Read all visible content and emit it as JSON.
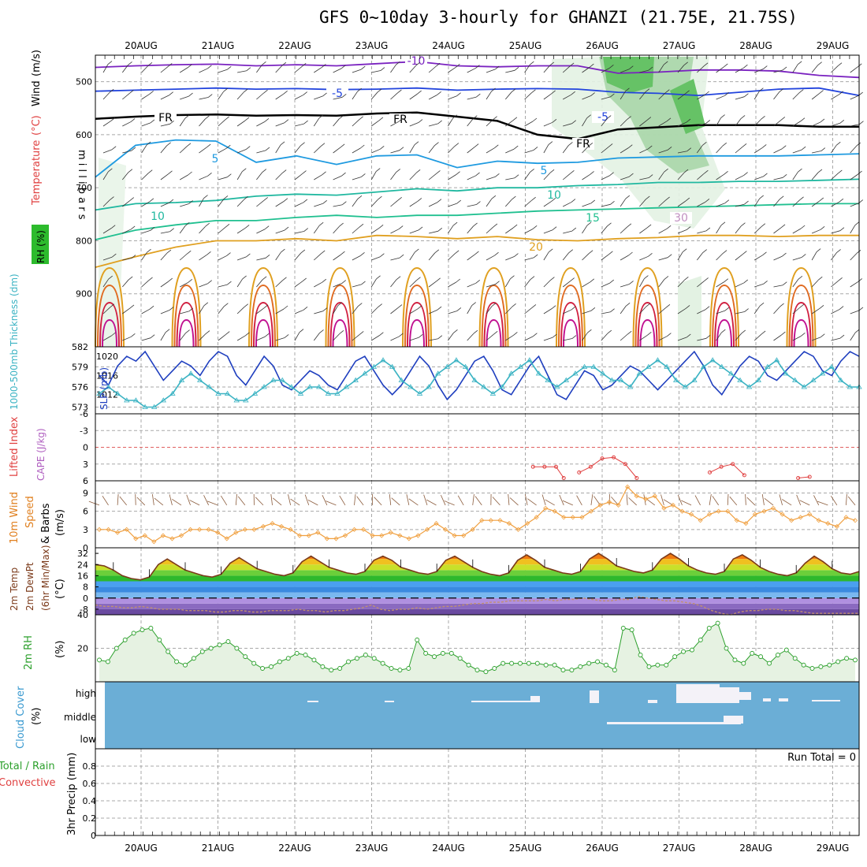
{
  "title": "GFS 0~10day 3-hourly for GHANZI (21.75E, 21.75S)",
  "colors": {
    "grid": "#a8a8a8",
    "cloud_blue": "#6baed6",
    "rh_green": "#2ca02c",
    "slp_blue": "#1f3fbf",
    "thick_cyan": "#3bb3c3",
    "wind_orange": "#f0a040",
    "temp_brown": "#7b3a1a",
    "dew_purple": "#8a5a9a",
    "precip_red": "#e04040"
  },
  "chart_data": [
    {
      "type": "heatmap",
      "name": "upper-air",
      "dates": [
        "20AUG",
        "21AUG",
        "22AUG",
        "23AUG",
        "24AUG",
        "25AUG",
        "26AUG",
        "27AUG",
        "28AUG",
        "29AUG"
      ],
      "y_axis_label": "m i l l i b a r s",
      "y_ticks": [
        500,
        600,
        700,
        800,
        900
      ],
      "ylim": [
        1000,
        450
      ],
      "legend_labels": [
        "RH (%)",
        "Temperature",
        "(°C)",
        "Wind",
        "(m/s)"
      ],
      "contour_labels": [
        "-10",
        "-5",
        "-5",
        "FR",
        "FR",
        "FR",
        "5",
        "5",
        "10",
        "10",
        "15",
        "20",
        "30"
      ],
      "isotherms": [
        {
          "label": "-10",
          "color": "#7a22c0",
          "p": [
            473,
            470,
            468,
            467,
            470,
            468,
            470,
            466,
            462,
            470,
            472,
            470,
            470,
            484,
            482,
            478,
            478,
            480,
            488,
            492
          ]
        },
        {
          "label": "-5",
          "color": "#2244dd",
          "p": [
            518,
            516,
            514,
            512,
            514,
            513,
            515,
            514,
            512,
            516,
            514,
            513,
            514,
            520,
            522,
            526,
            520,
            514,
            512,
            526
          ]
        },
        {
          "label": "FR",
          "color": "#000000",
          "p": [
            570,
            566,
            563,
            562,
            564,
            563,
            564,
            560,
            558,
            566,
            574,
            600,
            608,
            590,
            586,
            582,
            582,
            582,
            585,
            585
          ]
        },
        {
          "label": "5",
          "color": "#1e9ae0",
          "p": [
            680,
            620,
            610,
            612,
            652,
            640,
            656,
            640,
            638,
            662,
            650,
            654,
            652,
            644,
            642,
            640,
            640,
            640,
            638,
            636
          ]
        },
        {
          "label": "10",
          "color": "#20b8a0",
          "p": [
            742,
            730,
            728,
            724,
            716,
            712,
            714,
            708,
            702,
            706,
            700,
            700,
            696,
            694,
            690,
            690,
            688,
            688,
            686,
            684
          ]
        },
        {
          "label": "15",
          "color": "#20c090",
          "p": [
            798,
            780,
            770,
            762,
            762,
            756,
            752,
            756,
            752,
            752,
            748,
            744,
            742,
            740,
            738,
            736,
            734,
            732,
            730,
            730
          ]
        },
        {
          "label": "20",
          "color": "#e0a020",
          "p": [
            850,
            830,
            812,
            800,
            800,
            796,
            800,
            790,
            792,
            796,
            792,
            798,
            800,
            796,
            794,
            790,
            790,
            792,
            790,
            790
          ]
        }
      ],
      "rh_contour_labels": [
        "30"
      ]
    },
    {
      "type": "line",
      "name": "slp-thickness",
      "left_axis_label": "1000-500mb Thickness (dm)",
      "left_ticks": [
        573,
        576,
        579,
        582
      ],
      "left_ylim": [
        572,
        582
      ],
      "right_axis_label": "SLP (mb)",
      "right_ticks": [
        1012,
        1016,
        1020
      ],
      "right_ylim": [
        1008,
        1022
      ],
      "series": [
        {
          "name": "SLP",
          "axis": "right",
          "values": [
            1016,
            1014,
            1018,
            1020,
            1019,
            1021,
            1018,
            1015,
            1017,
            1019,
            1018,
            1016,
            1019,
            1021,
            1020,
            1016,
            1014,
            1017,
            1020,
            1018,
            1014,
            1013,
            1015,
            1017,
            1016,
            1014,
            1013,
            1016,
            1019,
            1020,
            1017,
            1014,
            1012,
            1014,
            1017,
            1020,
            1018,
            1014,
            1011,
            1013,
            1016,
            1019,
            1020,
            1017,
            1013,
            1012,
            1015,
            1018,
            1020,
            1016,
            1012,
            1011,
            1014,
            1017,
            1016,
            1013,
            1014,
            1016,
            1018,
            1017,
            1015,
            1013,
            1015,
            1017,
            1019,
            1021,
            1018,
            1014,
            1012,
            1015,
            1018,
            1020,
            1019,
            1016,
            1015,
            1017,
            1019,
            1021,
            1020,
            1017,
            1016,
            1019,
            1021,
            1020
          ]
        },
        {
          "name": "Thickness",
          "axis": "left",
          "values": [
            575,
            576,
            575,
            574,
            574,
            573,
            573,
            574,
            575,
            577,
            578,
            577,
            576,
            575,
            575,
            574,
            574,
            575,
            576,
            577,
            577,
            576,
            575,
            576,
            576,
            575,
            575,
            576,
            577,
            578,
            579,
            580,
            579,
            577,
            576,
            575,
            576,
            578,
            579,
            580,
            579,
            577,
            576,
            575,
            576,
            578,
            579,
            580,
            578,
            577,
            576,
            577,
            578,
            579,
            579,
            578,
            577,
            577,
            576,
            578,
            579,
            580,
            579,
            577,
            576,
            577,
            579,
            580,
            579,
            578,
            577,
            576,
            577,
            579,
            580,
            578,
            577,
            576,
            577,
            578,
            579,
            577,
            576,
            576
          ]
        }
      ]
    },
    {
      "type": "line",
      "name": "lifted-index-cape",
      "left_axis_label": "Lifted Index",
      "right_axis_label": "CAPE (J/kg)",
      "y_ticks": [
        -6,
        -3,
        0,
        3,
        6
      ],
      "ylim": [
        6,
        -6
      ],
      "series": [
        {
          "name": "Lifted Index (segments)",
          "segments": [
            [
              [
                5.6,
                3.5
              ],
              [
                5.75,
                3.5
              ],
              [
                5.9,
                3.5
              ],
              [
                6.0,
                5.5
              ]
            ],
            [
              [
                6.2,
                4.5
              ],
              [
                6.35,
                3.5
              ],
              [
                6.5,
                2.0
              ],
              [
                6.65,
                1.8
              ],
              [
                6.8,
                3.0
              ],
              [
                6.95,
                5.5
              ]
            ],
            [
              [
                7.9,
                4.5
              ],
              [
                8.05,
                3.5
              ],
              [
                8.2,
                3.0
              ],
              [
                8.35,
                5.0
              ]
            ],
            [
              [
                9.05,
                5.5
              ],
              [
                9.2,
                5.3
              ]
            ]
          ]
        }
      ]
    },
    {
      "type": "line",
      "name": "wind-10m",
      "axis_label_1": "10m Wind",
      "axis_label_2": "Speed",
      "axis_label_3": "& Barbs",
      "right_label": "(m/s)",
      "y_ticks": [
        0,
        3,
        6,
        9
      ],
      "ylim": [
        0,
        11
      ],
      "series": [
        {
          "name": "10m Wind Speed",
          "values": [
            3,
            3,
            2.5,
            3,
            1.5,
            2,
            1,
            2,
            1.5,
            2,
            3,
            3,
            3,
            2.5,
            1.5,
            2.5,
            3,
            3,
            3.5,
            4,
            3.5,
            3,
            2,
            2,
            2.5,
            1.5,
            1.5,
            2,
            3,
            3,
            2,
            2,
            2.5,
            2,
            1.5,
            2,
            3,
            4,
            3,
            2,
            2,
            3,
            4.5,
            4.5,
            4.5,
            4,
            3,
            4,
            5,
            6.5,
            6,
            5,
            5,
            5,
            6,
            7,
            7.5,
            7,
            10,
            8.5,
            8,
            8.5,
            6.5,
            7,
            6,
            5.5,
            4.5,
            5.5,
            6,
            6,
            4.5,
            4,
            5.5,
            6,
            6.5,
            5.5,
            4.5,
            5,
            5.5,
            4.5,
            4,
            3.5,
            5,
            4.5
          ]
        }
      ]
    },
    {
      "type": "area",
      "name": "temp-2m",
      "axis_labels": [
        "2m Temp",
        "2m DewPt",
        "(6hr Min/Max)"
      ],
      "right_label": "(°C)",
      "y_ticks": [
        -8,
        0,
        8,
        16,
        24,
        32
      ],
      "ylim": [
        -12,
        36
      ],
      "series": [
        {
          "name": "2m Temp",
          "values": [
            24,
            23,
            20,
            16,
            14,
            13,
            15,
            24,
            28,
            24,
            20,
            18,
            16,
            15,
            17,
            25,
            29,
            25,
            21,
            19,
            17,
            16,
            18,
            26,
            30,
            26,
            22,
            20,
            18,
            17,
            19,
            27,
            30,
            27,
            22,
            20,
            18,
            17,
            19,
            27,
            30,
            26,
            22,
            19,
            17,
            16,
            18,
            27,
            31,
            27,
            22,
            20,
            18,
            17,
            19,
            28,
            32,
            28,
            23,
            21,
            19,
            18,
            20,
            28,
            32,
            28,
            23,
            20,
            18,
            17,
            19,
            28,
            31,
            27,
            22,
            19,
            17,
            16,
            18,
            25,
            30,
            26,
            21,
            18,
            17,
            19
          ]
        },
        {
          "name": "2m DewPt",
          "values": [
            -5,
            -6,
            -6,
            -7,
            -7,
            -6,
            -7,
            -8,
            -8,
            -8,
            -9,
            -9,
            -9,
            -10,
            -10,
            -9,
            -9,
            -10,
            -10,
            -9,
            -9,
            -9,
            -8,
            -9,
            -9,
            -10,
            -9,
            -9,
            -8,
            -7,
            -5,
            -8,
            -9,
            -8,
            -8,
            -7,
            -8,
            -7,
            -6,
            -6,
            -5,
            -4,
            -4,
            -3,
            -3,
            -2,
            -2,
            -2,
            -2,
            -1,
            -2,
            -1,
            -1,
            0,
            -1,
            -2,
            -2,
            -1,
            -1,
            1,
            0,
            -1,
            -2,
            -2,
            -3,
            -4,
            -6,
            -9,
            -11,
            -12,
            -10,
            -9,
            -9,
            -8,
            -8,
            -9,
            -9,
            -10,
            -11,
            -11,
            -11,
            -11,
            -11,
            -11
          ]
        }
      ]
    },
    {
      "type": "area",
      "name": "rh-2m",
      "axis_label": "2m RH",
      "right_label": "(%)",
      "y_ticks": [
        20,
        40
      ],
      "ylim": [
        0,
        40
      ],
      "series": [
        {
          "name": "2m RH",
          "values": [
            13,
            12,
            20,
            25,
            29,
            31,
            32,
            25,
            18,
            12,
            10,
            14,
            18,
            20,
            22,
            24,
            20,
            15,
            11,
            8,
            9,
            12,
            14,
            17,
            16,
            13,
            9,
            7,
            8,
            12,
            14,
            16,
            14,
            11,
            8,
            7,
            8,
            25,
            17,
            15,
            17,
            17,
            14,
            10,
            7,
            6,
            8,
            11,
            11,
            11,
            11,
            11,
            10,
            10,
            7,
            7,
            9,
            11,
            12,
            10,
            7,
            32,
            31,
            16,
            9,
            10,
            10,
            15,
            18,
            19,
            25,
            32,
            35,
            20,
            13,
            11,
            17,
            15,
            11,
            16,
            19,
            14,
            10,
            8,
            9,
            10,
            12,
            14,
            13
          ]
        }
      ]
    },
    {
      "type": "heatmap",
      "name": "cloud-cover",
      "axis_label": "Cloud Cover",
      "right_label": "(%)",
      "levels": [
        "high",
        "middle",
        "low"
      ]
    },
    {
      "type": "bar",
      "name": "precip",
      "axis_label_1": "Total / Rain",
      "axis_label_2": "Convective",
      "left_label": "3hr Precip (mm)",
      "y_ticks": [
        0,
        0.2,
        0.4,
        0.6,
        0.8
      ],
      "ylim": [
        0,
        1
      ],
      "run_total": "Run Total = 0",
      "values": []
    }
  ]
}
